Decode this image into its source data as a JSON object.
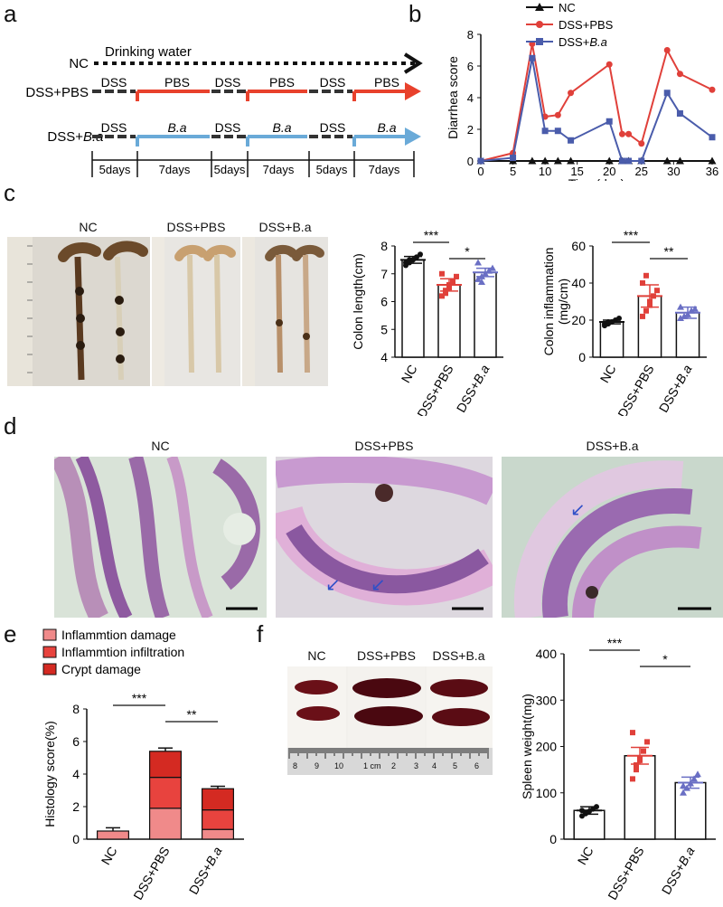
{
  "panel_labels": {
    "a": "a",
    "b": "b",
    "c": "c",
    "d": "d",
    "e": "e",
    "f": "f"
  },
  "panel_a": {
    "rows": [
      {
        "group": "NC",
        "note": "Drinking water"
      },
      {
        "group": "DSS+PBS",
        "segments": [
          "DSS",
          "PBS",
          "DSS",
          "PBS",
          "DSS",
          "PBS"
        ]
      },
      {
        "group": "DSS+",
        "group_italic": "B.a",
        "segments": [
          "DSS",
          "B.a",
          "DSS",
          "B.a",
          "DSS",
          "B.a"
        ]
      }
    ],
    "durations": [
      "5days",
      "7days",
      "5days",
      "7days",
      "5days",
      "7days"
    ],
    "colors": {
      "nc": "#111111",
      "pbs": "#e8412c",
      "ba": "#6aaad8",
      "dss": "#333333"
    }
  },
  "panel_c_photos": {
    "captions": [
      "NC",
      "DSS+PBS",
      "DSS+B.a"
    ]
  },
  "panel_d_photos": {
    "captions": [
      "NC",
      "DSS+PBS",
      "DSS+B.a"
    ]
  },
  "panel_f_photos": {
    "captions": [
      "NC",
      "DSS+PBS",
      "DSS+B.a"
    ],
    "ruler_ticks": [
      "8",
      "9",
      "10",
      "1 cm",
      "2",
      "3",
      "4",
      "5",
      "6"
    ]
  },
  "chart_data": [
    {
      "id": "b",
      "type": "line",
      "xlabel": "Time(day)",
      "ylabel": "Diarrhea score",
      "xlim": [
        0,
        36
      ],
      "ylim": [
        0,
        8
      ],
      "xticks": [
        0,
        5,
        10,
        15,
        20,
        25,
        30,
        36
      ],
      "yticks": [
        0,
        2,
        4,
        6,
        8
      ],
      "legend": "top",
      "grid": false,
      "series": [
        {
          "name": "NC",
          "color": "#111111",
          "marker": "triangle",
          "x": [
            0,
            5,
            8,
            10,
            12,
            14,
            20,
            22,
            23,
            25,
            29,
            31,
            36
          ],
          "y": [
            0,
            0,
            0,
            0,
            0,
            0,
            0,
            0,
            0,
            0,
            0,
            0,
            0
          ]
        },
        {
          "name": "DSS+PBS",
          "color": "#e0403a",
          "marker": "circle",
          "x": [
            0,
            5,
            8,
            10,
            12,
            14,
            20,
            22,
            23,
            25,
            29,
            31,
            36
          ],
          "y": [
            0,
            0.5,
            7.4,
            2.8,
            2.9,
            4.3,
            6.1,
            1.7,
            1.7,
            1.1,
            7.0,
            5.5,
            4.5
          ]
        },
        {
          "name": "DSS+B.a",
          "color": "#4a5cab",
          "marker": "square",
          "x": [
            0,
            5,
            8,
            10,
            12,
            14,
            20,
            22,
            23,
            25,
            29,
            31,
            36
          ],
          "y": [
            0,
            0.2,
            6.5,
            1.9,
            1.9,
            1.3,
            2.5,
            0.0,
            0.0,
            0.0,
            4.3,
            3.0,
            1.5
          ]
        }
      ]
    },
    {
      "id": "c1",
      "type": "bar",
      "ylabel": "Colon length(cm)",
      "ylim": [
        4,
        8
      ],
      "yticks": [
        4,
        5,
        6,
        7,
        8
      ],
      "categories": [
        "NC",
        "DSS+PBS",
        "DSS+B.a"
      ],
      "values": [
        7.5,
        6.6,
        7.05
      ],
      "errors": [
        0.12,
        0.22,
        0.15
      ],
      "colors": [
        "#111111",
        "#e0403a",
        "#6a6fc4"
      ],
      "markers": [
        "circle",
        "square",
        "triangle"
      ],
      "points": [
        [
          7.3,
          7.4,
          7.5,
          7.6,
          7.7,
          7.4,
          7.5
        ],
        [
          6.2,
          6.4,
          6.5,
          6.7,
          6.9,
          7.0,
          6.3,
          6.6
        ],
        [
          6.8,
          6.9,
          7.0,
          7.1,
          7.2,
          7.4,
          6.7
        ]
      ],
      "significance": [
        {
          "pair": [
            0,
            1
          ],
          "label": "***"
        },
        {
          "pair": [
            1,
            2
          ],
          "label": "*"
        }
      ]
    },
    {
      "id": "c2",
      "type": "bar",
      "ylabel": "Colon inflammation (mg/cm)",
      "ylim": [
        0,
        60
      ],
      "yticks": [
        0,
        20,
        40,
        60
      ],
      "categories": [
        "NC",
        "DSS+PBS",
        "DSS+B.a"
      ],
      "values": [
        19,
        33,
        24
      ],
      "errors": [
        1,
        6,
        3
      ],
      "colors": [
        "#111111",
        "#e0403a",
        "#6a6fc4"
      ],
      "markers": [
        "circle",
        "square",
        "triangle"
      ],
      "points": [
        [
          17,
          18,
          19,
          20,
          21,
          18,
          19
        ],
        [
          22,
          25,
          30,
          33,
          36,
          40,
          44,
          28
        ],
        [
          21,
          22,
          23,
          25,
          26,
          27
        ]
      ],
      "significance": [
        {
          "pair": [
            0,
            1
          ],
          "label": "***"
        },
        {
          "pair": [
            1,
            2
          ],
          "label": "**"
        }
      ]
    },
    {
      "id": "e",
      "type": "bar",
      "stacked": true,
      "ylabel": "Histology score(%)",
      "ylim": [
        0,
        8
      ],
      "yticks": [
        0,
        2,
        4,
        6,
        8
      ],
      "categories": [
        "NC",
        "DSS+PBS",
        "DSS+B.a"
      ],
      "series": [
        {
          "name": "Inflammtion damage",
          "color": "#f08a8a",
          "values": [
            0.5,
            1.9,
            0.6
          ]
        },
        {
          "name": "Inflammtion infiltration",
          "color": "#e8433e",
          "values": [
            0,
            1.9,
            1.2
          ]
        },
        {
          "name": "Crypt damage",
          "color": "#d42a22",
          "values": [
            0,
            1.6,
            1.3
          ]
        }
      ],
      "errors": [
        0.2,
        0.2,
        0.15
      ],
      "significance": [
        {
          "pair": [
            0,
            1
          ],
          "label": "***"
        },
        {
          "pair": [
            1,
            2
          ],
          "label": "**"
        }
      ]
    },
    {
      "id": "f",
      "type": "bar",
      "ylabel": "Spleen weight(mg)",
      "ylim": [
        0,
        400
      ],
      "yticks": [
        0,
        100,
        200,
        300,
        400
      ],
      "categories": [
        "NC",
        "DSS+PBS",
        "DSS+B.a"
      ],
      "values": [
        62,
        180,
        122
      ],
      "errors": [
        8,
        18,
        12
      ],
      "colors": [
        "#111111",
        "#e0403a",
        "#6a6fc4"
      ],
      "markers": [
        "circle",
        "square",
        "triangle"
      ],
      "points": [
        [
          50,
          55,
          60,
          65,
          70,
          62,
          58
        ],
        [
          130,
          150,
          170,
          190,
          210,
          230,
          160,
          175
        ],
        [
          100,
          110,
          120,
          130,
          140,
          115
        ]
      ],
      "significance": [
        {
          "pair": [
            0,
            1
          ],
          "label": "***"
        },
        {
          "pair": [
            1,
            2
          ],
          "label": "*"
        }
      ]
    }
  ]
}
